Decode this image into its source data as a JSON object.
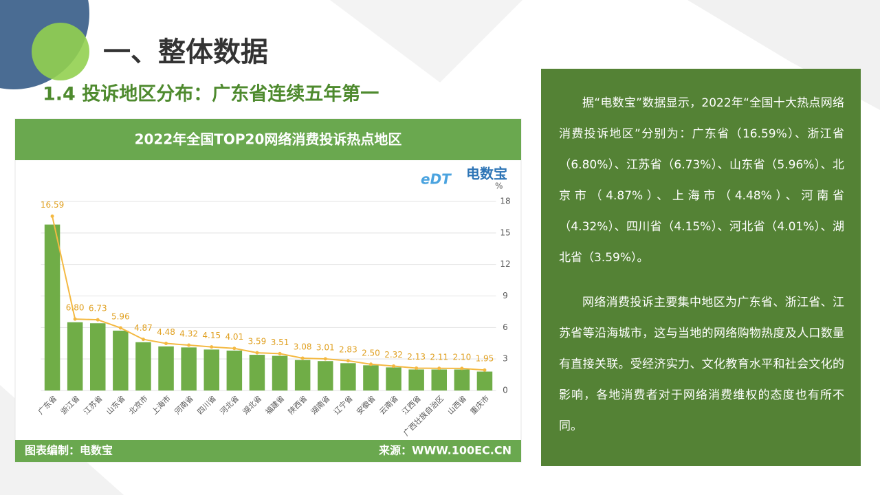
{
  "heading": "一、整体数据",
  "subheading": "1.4 投诉地区分布：广东省连续五年第一",
  "chart_footer": {
    "left": "图表编制：电数宝",
    "right": "来源：WWW.100EC.CN"
  },
  "logo": {
    "mark": "eDT",
    "name": "电数宝"
  },
  "panel": {
    "paragraphs": [
      "据“电数宝”数据显示，2022年“全国十大热点网络消费投诉地区”分别为：广东省（16.59%）、浙江省（6.80%）、江苏省（6.73%）、山东省（5.96%）、北京市（4.87%）、上海市（4.48%）、河南省（4.32%）、四川省（4.15%）、河北省（4.01%）、湖北省（3.59%）。",
      "网络消费投诉主要集中地区为广东省、浙江省、江苏省等沿海城市，这与当地的网络购物热度及人口数量有直接关联。受经济实力、文化教育水平和社会文化的影响，各地消费者对于网络消费维权的态度也有所不同。"
    ]
  },
  "chart_data": {
    "type": "bar-line",
    "title": "2022年全国TOP20网络消费投诉热点地区",
    "y_unit": "%",
    "categories": [
      "广东省",
      "浙江省",
      "江苏省",
      "山东省",
      "北京市",
      "上海市",
      "河南省",
      "四川省",
      "河北省",
      "湖北省",
      "福建省",
      "陕西省",
      "湖南省",
      "辽宁省",
      "安徽省",
      "云南省",
      "江西省",
      "广西壮族自治区",
      "山西省",
      "重庆市"
    ],
    "series": [
      {
        "type": "bar",
        "color": "#70ad47",
        "values": [
          15.8,
          6.5,
          6.4,
          5.7,
          4.6,
          4.2,
          4.1,
          3.9,
          3.8,
          3.4,
          3.3,
          2.9,
          2.8,
          2.6,
          2.4,
          2.2,
          2.0,
          2.0,
          2.0,
          1.8
        ]
      },
      {
        "type": "line",
        "color": "#f4b942",
        "values": [
          16.59,
          6.8,
          6.73,
          5.96,
          4.87,
          4.48,
          4.32,
          4.15,
          4.01,
          3.59,
          3.51,
          3.08,
          3.01,
          2.83,
          2.5,
          2.32,
          2.13,
          2.11,
          2.1,
          1.95
        ],
        "value_labels": [
          "16.59",
          "6.80",
          "6.73",
          "5.96",
          "4.87",
          "4.48",
          "4.32",
          "4.15",
          "4.01",
          "3.59",
          "3.51",
          "3.08",
          "3.01",
          "2.83",
          "2.50",
          "2.32",
          "2.13",
          "2.11",
          "2.10",
          "1.95"
        ]
      }
    ],
    "ylim": [
      0,
      18
    ],
    "yticks": [
      0,
      3,
      6,
      9,
      12,
      15,
      18
    ],
    "grid": true
  }
}
